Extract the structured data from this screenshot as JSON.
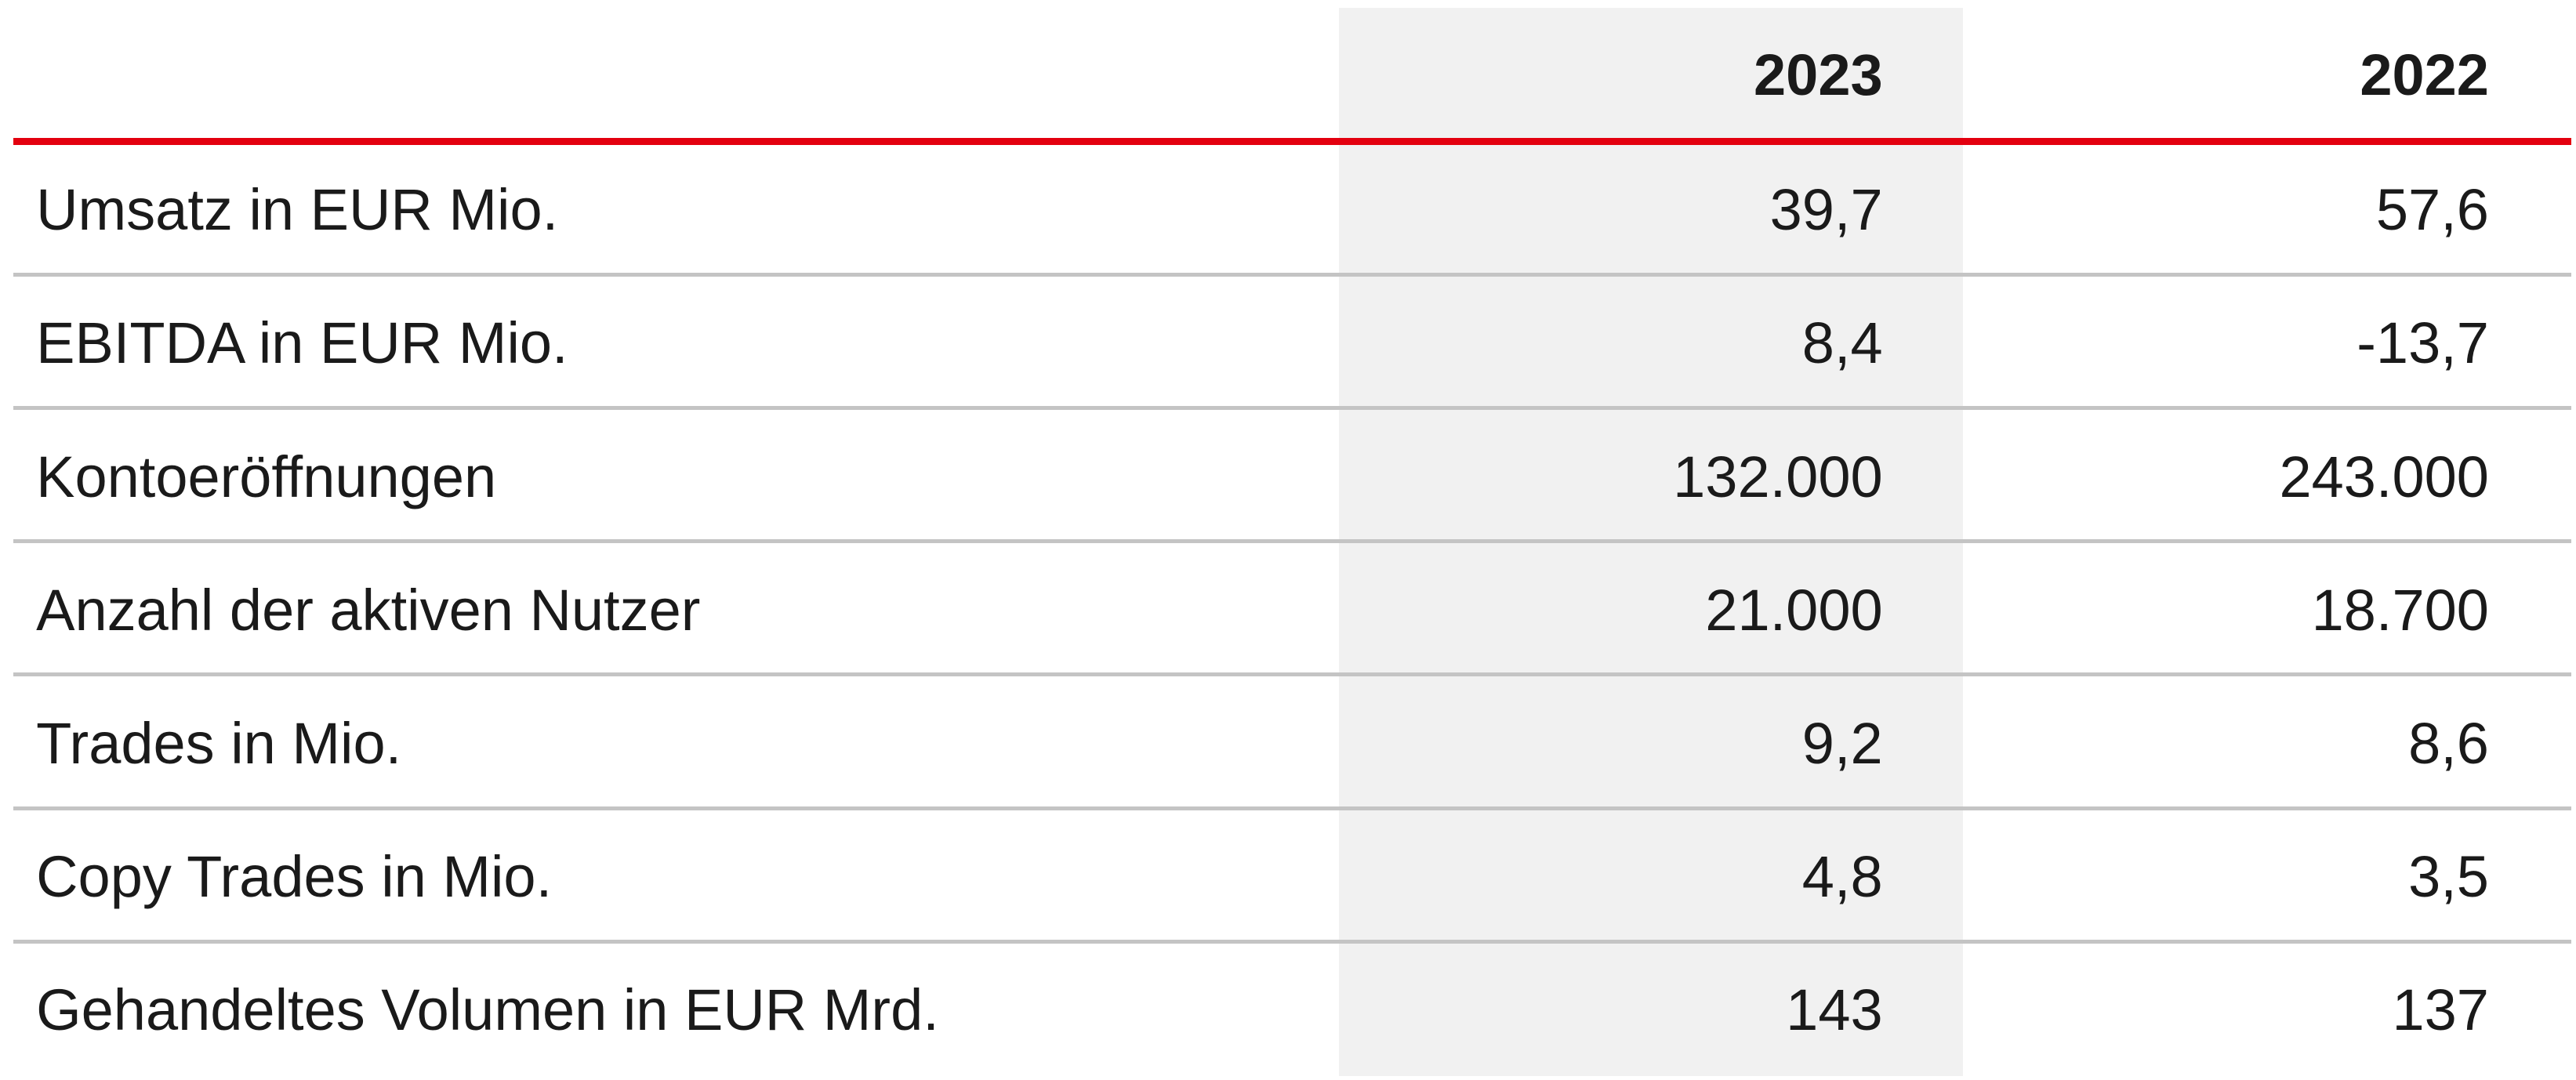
{
  "table": {
    "columns": [
      "2023",
      "2022"
    ],
    "rows": [
      [
        "Umsatz in EUR Mio.",
        "39,7",
        "57,6"
      ],
      [
        "EBITDA in EUR Mio.",
        "8,4",
        "-13,7"
      ],
      [
        "Kontoeröffnungen",
        "132.000",
        "243.000"
      ],
      [
        "Anzahl der aktiven Nutzer",
        "21.000",
        "18.700"
      ],
      [
        "Trades in Mio.",
        "9,2",
        "8,6"
      ],
      [
        "Copy Trades in Mio.",
        "4,8",
        "3,5"
      ],
      [
        "Gehandeltes Volumen in EUR Mrd.",
        "143",
        "137"
      ]
    ]
  }
}
